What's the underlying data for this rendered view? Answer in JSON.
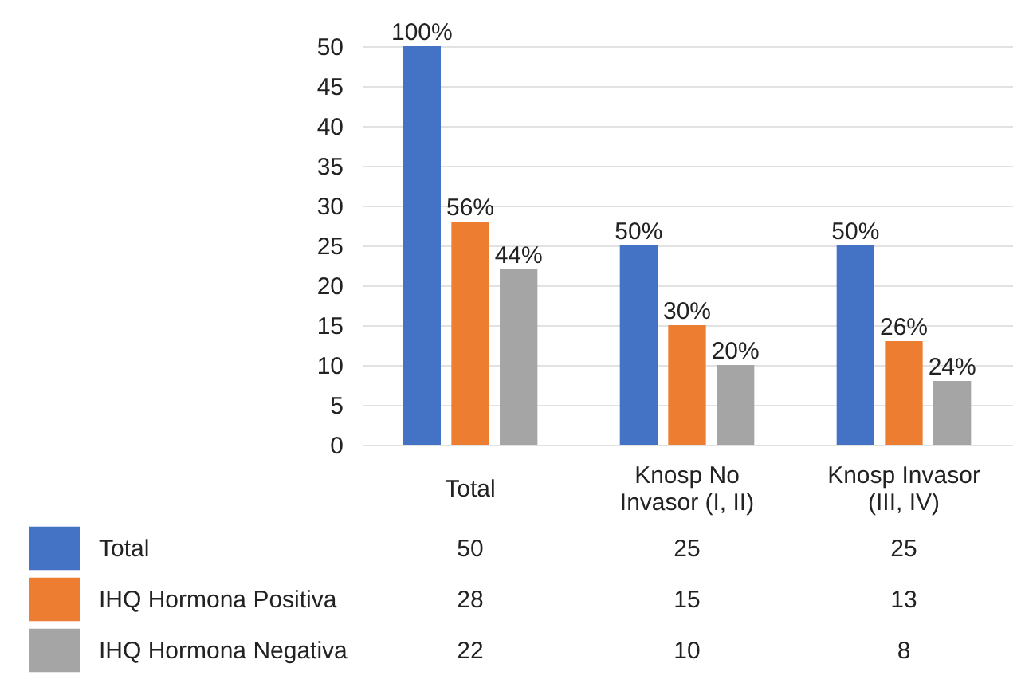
{
  "chart_data": {
    "type": "bar",
    "categories": [
      "Total",
      "Knosp No Invasor (I, II)",
      "Knosp Invasor (III, IV)"
    ],
    "series": [
      {
        "name": "Total",
        "color": "#4472c4",
        "values": [
          50,
          25,
          25
        ]
      },
      {
        "name": "IHQ Hormona Positiva",
        "color": "#ed7d31",
        "values": [
          28,
          15,
          13
        ]
      },
      {
        "name": "IHQ Hormona Negativa",
        "color": "#a5a5a5",
        "values": [
          22,
          10,
          8
        ]
      }
    ],
    "annotations": [
      "100%",
      "56%",
      "44%",
      "50%",
      "30%",
      "20%",
      "50%",
      "26%",
      "24%"
    ],
    "ylim": [
      0,
      50
    ],
    "yticks": [
      0,
      5,
      10,
      15,
      20,
      25,
      30,
      35,
      40,
      45,
      50
    ],
    "grid": "y",
    "legend": "bottom left",
    "data_labels": true
  }
}
